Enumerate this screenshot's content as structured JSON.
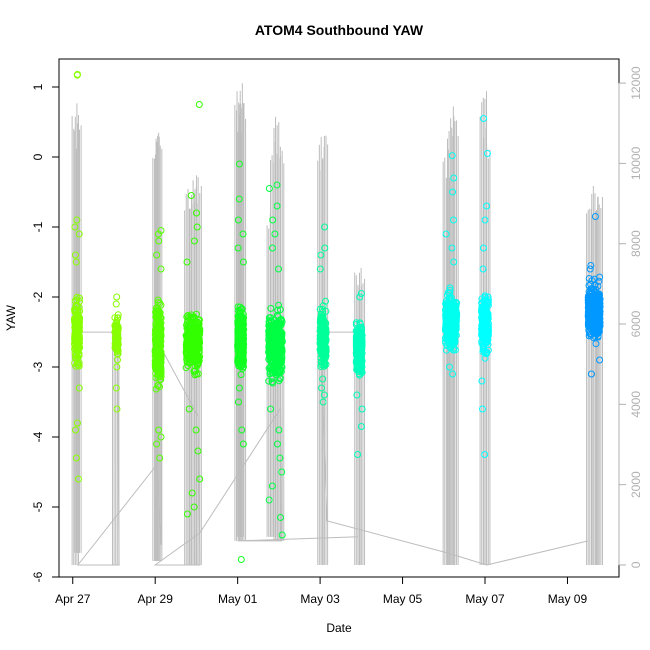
{
  "chart_data": {
    "type": "scatter",
    "title": "ATOM4 Southbound YAW",
    "xlabel": "Date",
    "ylabel": "YAW",
    "y2label": "",
    "xlim": [
      "2016-04-26 16:00",
      "2016-05-10 06:00"
    ],
    "ylim": [
      -6,
      1.4
    ],
    "y2lim": [
      -300,
      12600
    ],
    "x_ticks": [
      {
        "label": "Apr 27",
        "date": "2016-04-27"
      },
      {
        "label": "Apr 29",
        "date": "2016-04-29"
      },
      {
        "label": "May 01",
        "date": "2016-05-01"
      },
      {
        "label": "May 03",
        "date": "2016-05-03"
      },
      {
        "label": "May 05",
        "date": "2016-05-05"
      },
      {
        "label": "May 07",
        "date": "2016-05-07"
      },
      {
        "label": "May 09",
        "date": "2016-05-09"
      }
    ],
    "y_ticks": [
      1,
      0,
      -1,
      -2,
      -3,
      -4,
      -5,
      -6
    ],
    "y2_ticks": [
      0,
      2000,
      4000,
      6000,
      8000,
      10000,
      12000
    ],
    "grid": false,
    "clusters": [
      {
        "start": "2016-04-27 01:00",
        "end": "2016-04-27 04:00",
        "center": -2.5,
        "spread": 0.35,
        "count": 170,
        "color": "#88ff00",
        "outliers": [
          1.18,
          1.17,
          -0.9,
          -1.0,
          -1.1,
          -1.5,
          -1.4,
          -3.3,
          -3.8,
          -3.9,
          -4.3,
          -4.6
        ]
      },
      {
        "start": "2016-04-28 00:30",
        "end": "2016-04-28 02:30",
        "center": -2.55,
        "spread": 0.2,
        "count": 90,
        "color": "#88ff00",
        "outliers": [
          -2.0,
          -2.1,
          -3.0,
          -3.3,
          -3.6
        ]
      },
      {
        "start": "2016-04-29 00:00",
        "end": "2016-04-29 03:30",
        "center": -2.7,
        "spread": 0.45,
        "count": 260,
        "color": "#55ff00",
        "outliers": [
          -1.05,
          -1.1,
          -1.2,
          -1.4,
          -1.6,
          -3.9,
          -4.0,
          -4.1,
          -4.3
        ]
      },
      {
        "start": "2016-04-29 18:00",
        "end": "2016-04-30 02:00",
        "center": -2.65,
        "spread": 0.3,
        "count": 360,
        "color": "#33ff00",
        "outliers": [
          0.75,
          -0.55,
          -0.8,
          -1.0,
          -1.2,
          -1.5,
          -3.6,
          -3.9,
          -4.2,
          -4.6,
          -4.8,
          -5.0,
          -5.1
        ]
      },
      {
        "start": "2016-05-01 00:00",
        "end": "2016-05-01 03:30",
        "center": -2.6,
        "spread": 0.35,
        "count": 260,
        "color": "#11ff22",
        "outliers": [
          -0.1,
          -0.6,
          -0.9,
          -1.1,
          -1.3,
          -1.5,
          -3.3,
          -3.5,
          -3.9,
          -4.1,
          -5.75
        ]
      },
      {
        "start": "2016-05-01 18:00",
        "end": "2016-05-02 02:00",
        "center": -2.7,
        "spread": 0.35,
        "count": 360,
        "color": "#00ff44",
        "outliers": [
          -0.4,
          -0.45,
          -0.7,
          -0.9,
          -1.1,
          -1.3,
          -1.6,
          -3.6,
          -3.9,
          -4.1,
          -4.3,
          -4.5,
          -4.7,
          -4.9,
          -5.15,
          -5.4
        ]
      },
      {
        "start": "2016-05-03 00:00",
        "end": "2016-05-03 03:30",
        "center": -2.6,
        "spread": 0.3,
        "count": 220,
        "color": "#00ff99",
        "outliers": [
          -1.0,
          -1.3,
          -1.4,
          -1.6,
          -3.3,
          -3.4,
          -3.5
        ]
      },
      {
        "start": "2016-05-03 21:00",
        "end": "2016-05-04 00:30",
        "center": -2.75,
        "spread": 0.3,
        "count": 190,
        "color": "#00ffbb",
        "outliers": [
          -1.95,
          -2.0,
          -3.4,
          -3.6,
          -3.85,
          -4.25
        ]
      },
      {
        "start": "2016-05-06 01:00",
        "end": "2016-05-06 07:30",
        "center": -2.35,
        "spread": 0.28,
        "count": 380,
        "color": "#00ffee",
        "outliers": [
          0.02,
          -0.3,
          -0.5,
          -0.9,
          -1.1,
          -1.3,
          -1.5,
          -3.0,
          -3.1
        ]
      },
      {
        "start": "2016-05-06 22:00",
        "end": "2016-05-07 02:00",
        "center": -2.4,
        "spread": 0.3,
        "count": 230,
        "color": "#00ffff",
        "outliers": [
          0.55,
          0.05,
          -0.7,
          -0.9,
          -1.3,
          -1.6,
          -3.2,
          -3.6,
          -4.25
        ]
      },
      {
        "start": "2016-05-09 12:00",
        "end": "2016-05-09 19:00",
        "center": -2.2,
        "spread": 0.28,
        "count": 340,
        "color": "#0099ff",
        "outliers": [
          -0.85,
          -1.55,
          -1.6,
          -2.9,
          -3.1
        ]
      }
    ],
    "spikes": [
      {
        "date": "2016-04-27 01:30",
        "value": 11500,
        "base": 0
      },
      {
        "date": "2016-04-27 03:00",
        "value": 11100,
        "base": 300
      },
      {
        "date": "2016-04-28 01:00",
        "value": 6000,
        "base": 0
      },
      {
        "date": "2016-04-29 00:30",
        "value": 10800,
        "base": 100
      },
      {
        "date": "2016-04-29 02:00",
        "value": 11000,
        "base": 100
      },
      {
        "date": "2016-04-29 19:00",
        "value": 9300,
        "base": 0
      },
      {
        "date": "2016-04-29 21:00",
        "value": 9500,
        "base": 0
      },
      {
        "date": "2016-04-29 23:00",
        "value": 9600,
        "base": 0
      },
      {
        "date": "2016-04-30 01:00",
        "value": 9800,
        "base": 0
      },
      {
        "date": "2016-05-01 00:15",
        "value": 11600,
        "base": 600
      },
      {
        "date": "2016-05-01 01:30",
        "value": 12100,
        "base": 700
      },
      {
        "date": "2016-05-01 02:45",
        "value": 12050,
        "base": 600
      },
      {
        "date": "2016-05-01 19:00",
        "value": 9000,
        "base": 700
      },
      {
        "date": "2016-05-01 21:00",
        "value": 10700,
        "base": 700
      },
      {
        "date": "2016-05-01 23:00",
        "value": 11300,
        "base": 600
      },
      {
        "date": "2016-05-02 01:00",
        "value": 10600,
        "base": 600
      },
      {
        "date": "2016-05-03 00:30",
        "value": 10500,
        "base": 0
      },
      {
        "date": "2016-05-03 02:30",
        "value": 11000,
        "base": 0
      },
      {
        "date": "2016-05-03 22:00",
        "value": 7400,
        "base": 0
      },
      {
        "date": "2016-05-04 00:00",
        "value": 7200,
        "base": 0
      },
      {
        "date": "2016-05-06 01:30",
        "value": 10400,
        "base": 0
      },
      {
        "date": "2016-05-06 04:00",
        "value": 11300,
        "base": 0
      },
      {
        "date": "2016-05-06 06:30",
        "value": 11600,
        "base": 0
      },
      {
        "date": "2016-05-06 23:00",
        "value": 11800,
        "base": 0
      },
      {
        "date": "2016-05-07 01:00",
        "value": 11000,
        "base": 0
      },
      {
        "date": "2016-05-09 13:00",
        "value": 9100,
        "base": 0
      },
      {
        "date": "2016-05-09 16:00",
        "value": 9500,
        "base": 0
      },
      {
        "date": "2016-05-09 18:30",
        "value": 9400,
        "base": 0
      }
    ],
    "connector_path": [
      {
        "date": "2016-04-27 01:00",
        "value": 5800
      },
      {
        "date": "2016-04-28 02:00",
        "value": 5800
      },
      {
        "date": "2016-04-28 03:00",
        "value": 0
      },
      {
        "date": "2016-04-27 03:00",
        "value": 0
      },
      {
        "date": "2016-04-29 01:00",
        "value": 2500
      },
      {
        "date": "2016-04-29 03:30",
        "value": 500
      },
      {
        "date": "2016-04-29 03:30",
        "value": 5400
      },
      {
        "date": "2016-04-30 01:00",
        "value": 3700
      },
      {
        "date": "2016-04-30 02:00",
        "value": 0
      },
      {
        "date": "2016-04-29 00:00",
        "value": 0
      },
      {
        "date": "2016-04-30 02:00",
        "value": 800
      },
      {
        "date": "2016-05-02 01:00",
        "value": 3900
      },
      {
        "date": "2016-05-02 01:30",
        "value": 600
      },
      {
        "date": "2016-05-01 00:00",
        "value": 600
      },
      {
        "date": "2016-05-03 22:00",
        "value": 700
      },
      {
        "date": "2016-05-03 22:00",
        "value": 5800
      },
      {
        "date": "2016-05-03 00:00",
        "value": 5800
      },
      {
        "date": "2016-05-03 04:00",
        "value": 1100
      },
      {
        "date": "2016-05-06 02:00",
        "value": 300
      },
      {
        "date": "2016-05-07 01:00",
        "value": 0
      },
      {
        "date": "2016-05-09 12:00",
        "value": 600
      }
    ]
  }
}
